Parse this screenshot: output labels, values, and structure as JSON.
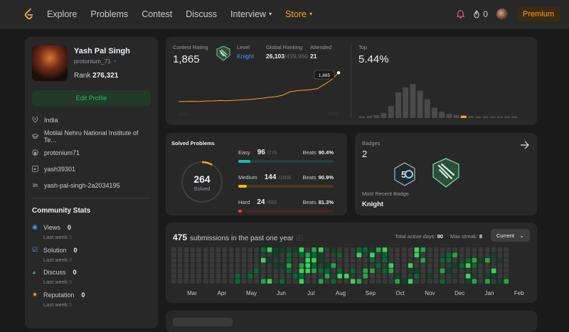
{
  "nav": {
    "items": [
      "Explore",
      "Problems",
      "Contest",
      "Discuss",
      "Interview",
      "Store"
    ],
    "flame_count": "0",
    "premium": "Premium"
  },
  "profile": {
    "name": "Yash Pal Singh",
    "username": "protonium_71",
    "rank_label": "Rank",
    "rank": "276,321",
    "edit": "Edit Profile",
    "location": "India",
    "school": "Motilal Nehru National Institute of Te...",
    "github": "protonium71",
    "twitter": "yash39301",
    "linkedin": "yash-pal-singh-2a2034195"
  },
  "community": {
    "title": "Community Stats",
    "last_week": "Last week",
    "stats": [
      {
        "label": "Views",
        "value": "0",
        "delta": "0",
        "color": "#3c9dff"
      },
      {
        "label": "Solution",
        "value": "0",
        "delta": "0",
        "color": "#49a0f7"
      },
      {
        "label": "Discuss",
        "value": "0",
        "delta": "0",
        "color": "#2cbb9d"
      },
      {
        "label": "Reputation",
        "value": "0",
        "delta": "0",
        "color": "#ffa116"
      }
    ]
  },
  "contest": {
    "rating_label": "Contest Rating",
    "rating": "1,865",
    "level_label": "Level",
    "level": "Knight",
    "global_label": "Global Ranking",
    "global_rank": "26,103",
    "global_total": "/499,966",
    "attended_label": "Attended",
    "attended": "21",
    "year_start": "2021",
    "year_end": "2023",
    "tooltip": "1,865",
    "top_label": "Top",
    "top_value": "5.44%",
    "histogram": [
      0.05,
      0.06,
      0.08,
      0.15,
      0.35,
      0.75,
      0.9,
      1.0,
      0.8,
      0.55,
      0.3,
      0.18,
      0.12,
      0.09,
      0.07,
      0.06,
      0.05,
      0.05,
      0.04,
      0.04,
      0.03,
      0.03
    ],
    "highlight_bar": 14,
    "rating_history": [
      1600,
      1602,
      1603,
      1601,
      1605,
      1606,
      1610,
      1608,
      1612,
      1615,
      1618,
      1625,
      1630,
      1640,
      1645,
      1660,
      1690,
      1700,
      1705,
      1710,
      1720,
      1760,
      1800,
      1865
    ]
  },
  "solved": {
    "title": "Solved Problems",
    "total": "264",
    "total_label": "Solved",
    "levels": [
      {
        "name": "Easy",
        "count": "96",
        "total": "/776",
        "beats_label": "Beats",
        "beats": "90.4%",
        "frac": 0.124,
        "color": "#1cbaba",
        "track": "#21403c"
      },
      {
        "name": "Medium",
        "count": "144",
        "total": "/1608",
        "beats_label": "Beats",
        "beats": "90.9%",
        "frac": 0.09,
        "color": "#ffb700",
        "track": "#4a3b14"
      },
      {
        "name": "Hard",
        "count": "24",
        "total": "/680",
        "beats_label": "Beats",
        "beats": "81.3%",
        "frac": 0.035,
        "color": "#f63737",
        "track": "#4a2222"
      }
    ]
  },
  "badges": {
    "title": "Badges",
    "count": "2",
    "recent_label": "Most Recent Badge",
    "recent": "Knight"
  },
  "submissions": {
    "count": "475",
    "text": "submissions in the past one year",
    "active_label": "Total active days:",
    "active": "90",
    "streak_label": "Max streak:",
    "streak": "8",
    "dropdown": "Current",
    "months": [
      "Mar",
      "Apr",
      "May",
      "Jun",
      "Jul",
      "Aug",
      "Sep",
      "Oct",
      "Nov",
      "Dec",
      "Jan",
      "Feb"
    ]
  }
}
